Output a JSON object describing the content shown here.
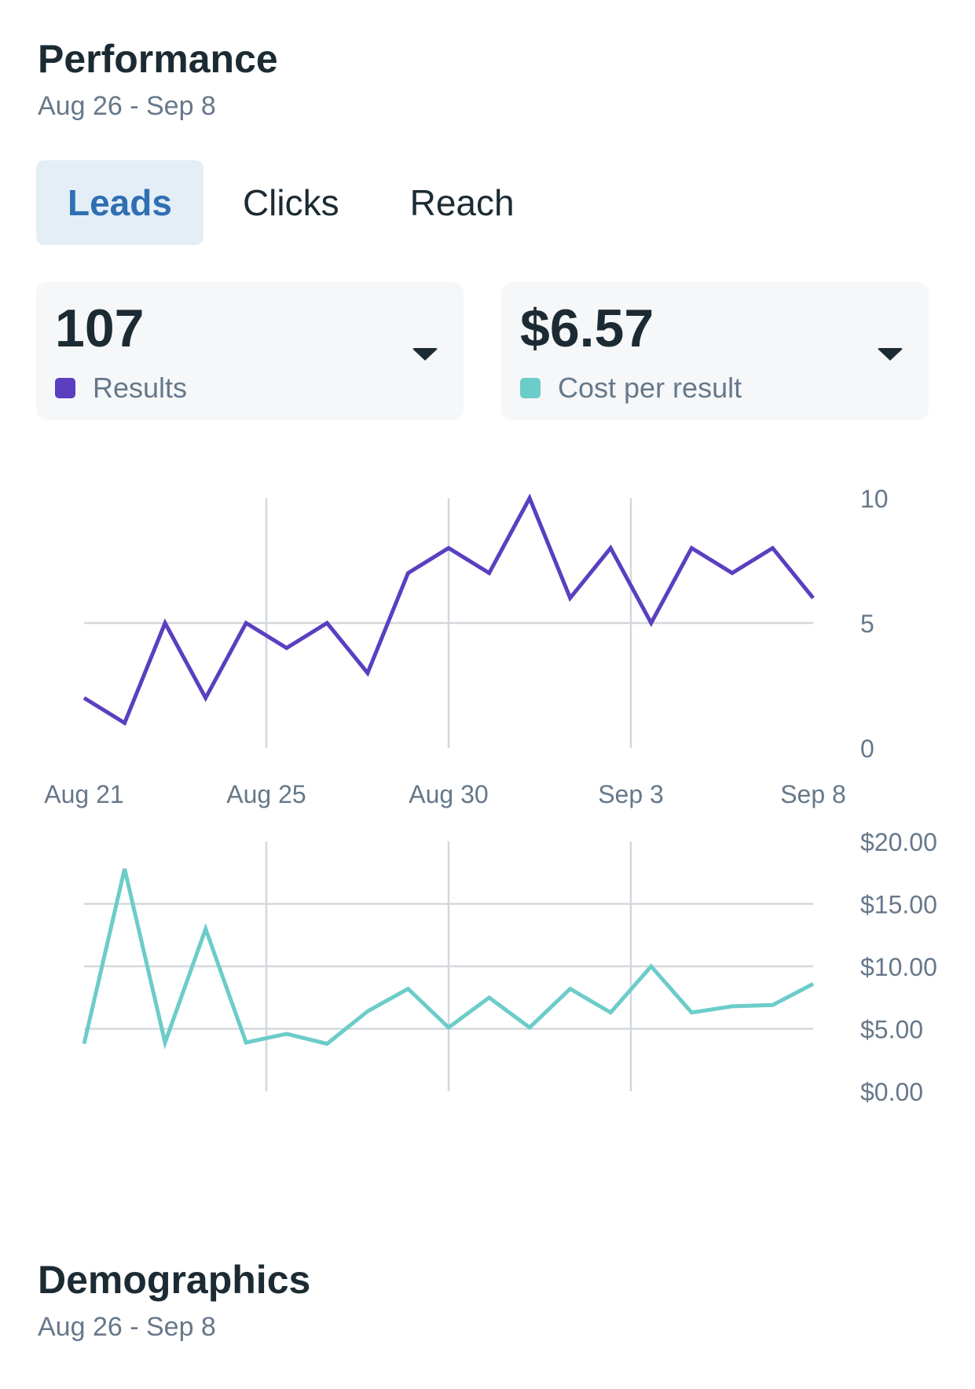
{
  "performance": {
    "title": "Performance",
    "date_range": "Aug 26 - Sep 8"
  },
  "tabs": [
    {
      "label": "Leads",
      "active": true
    },
    {
      "label": "Clicks",
      "active": false
    },
    {
      "label": "Reach",
      "active": false
    }
  ],
  "metrics": [
    {
      "value": "107",
      "label": "Results",
      "color": "#5a3fc0"
    },
    {
      "value": "$6.57",
      "label": "Cost per result",
      "color": "#6cccc9"
    }
  ],
  "chart_data": [
    {
      "type": "line",
      "name": "results-chart",
      "x_labels": [
        "Aug 21",
        "Aug 25",
        "Aug 30",
        "Sep 3",
        "Sep 8"
      ],
      "y_ticks": [
        "0",
        "5",
        "10"
      ],
      "ylim": [
        0,
        10
      ],
      "color": "#5a3fc0",
      "values": [
        2,
        1,
        5,
        2,
        5,
        4,
        5,
        3,
        7,
        8,
        7,
        10,
        6,
        8,
        5,
        8,
        7,
        8,
        6
      ]
    },
    {
      "type": "line",
      "name": "cost-per-result-chart",
      "x_labels": [
        "Aug 21",
        "Aug 25",
        "Aug 30",
        "Sep 3",
        "Sep 8"
      ],
      "y_ticks": [
        "$0.00",
        "$5.00",
        "$10.00",
        "$15.00",
        "$20.00"
      ],
      "ylim": [
        0,
        20
      ],
      "color": "#6cccc9",
      "values": [
        3.8,
        17.8,
        3.9,
        13.0,
        3.9,
        4.6,
        3.8,
        6.4,
        8.2,
        5.1,
        7.5,
        5.1,
        8.2,
        6.3,
        10.0,
        6.3,
        6.8,
        6.9,
        8.6
      ]
    }
  ],
  "demographics": {
    "title": "Demographics",
    "date_range": "Aug 26 - Sep 8"
  }
}
